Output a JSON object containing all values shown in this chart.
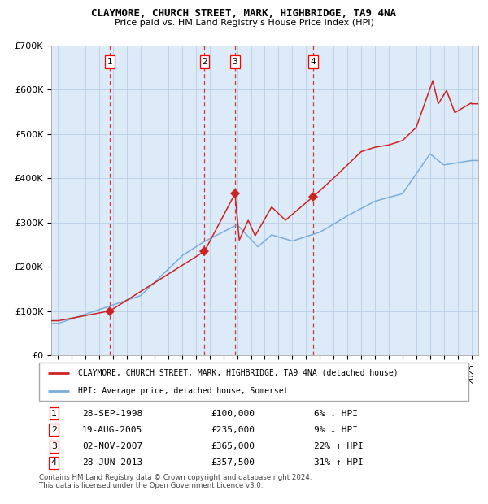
{
  "title": "CLAYMORE, CHURCH STREET, MARK, HIGHBRIDGE, TA9 4NA",
  "subtitle": "Price paid vs. HM Land Registry's House Price Index (HPI)",
  "hpi_color": "#7aaddb",
  "price_color": "#cc2222",
  "bg_color": "#ddeaf7",
  "grid_color": "#b8cfe8",
  "sale_dates": [
    1998.74,
    2005.63,
    2007.84,
    2013.49
  ],
  "sale_prices": [
    100000,
    235000,
    365000,
    357500
  ],
  "sale_labels": [
    "1",
    "2",
    "3",
    "4"
  ],
  "legend_price_label": "CLAYMORE, CHURCH STREET, MARK, HIGHBRIDGE, TA9 4NA (detached house)",
  "legend_hpi_label": "HPI: Average price, detached house, Somerset",
  "table_rows": [
    [
      "1",
      "28-SEP-1998",
      "£100,000",
      "6% ↓ HPI"
    ],
    [
      "2",
      "19-AUG-2005",
      "£235,000",
      "9% ↓ HPI"
    ],
    [
      "3",
      "02-NOV-2007",
      "£365,000",
      "22% ↑ HPI"
    ],
    [
      "4",
      "28-JUN-2013",
      "£357,500",
      "31% ↑ HPI"
    ]
  ],
  "footer": "Contains HM Land Registry data © Crown copyright and database right 2024.\nThis data is licensed under the Open Government Licence v3.0.",
  "ylim": [
    0,
    700000
  ],
  "xlim_start": 1994.5,
  "xlim_end": 2025.5,
  "yticks": [
    0,
    100000,
    200000,
    300000,
    400000,
    500000,
    600000,
    700000
  ],
  "ytick_labels": [
    "£0",
    "£100K",
    "£200K",
    "£300K",
    "£400K",
    "£500K",
    "£600K",
    "£700K"
  ]
}
